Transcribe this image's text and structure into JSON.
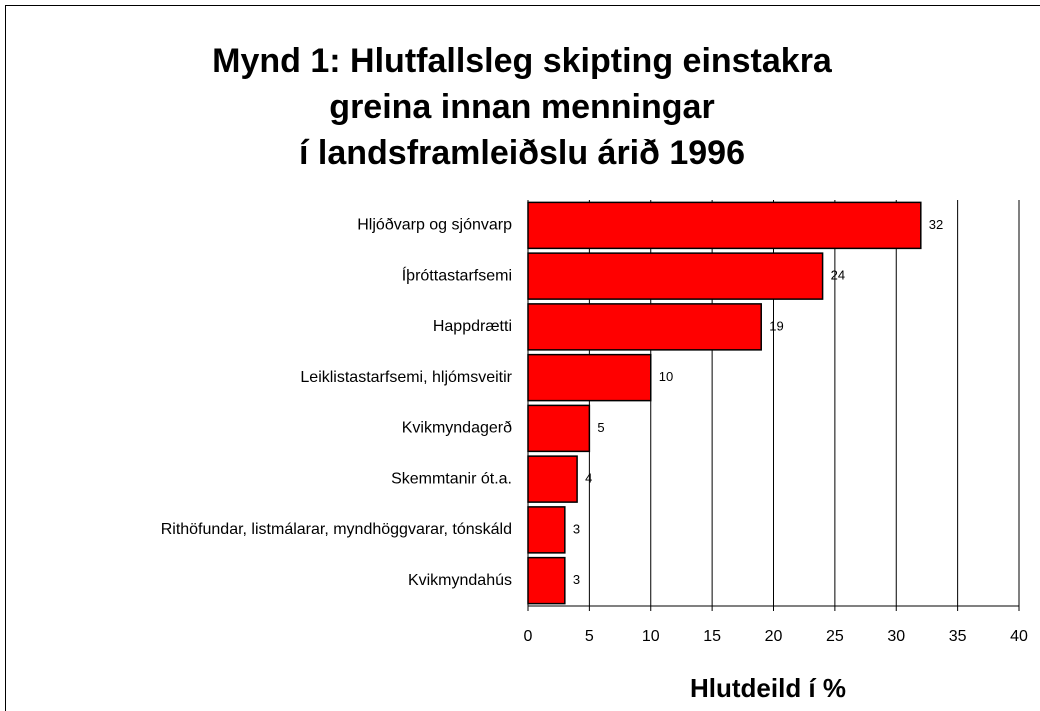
{
  "chart_data": {
    "type": "bar",
    "orientation": "horizontal",
    "title": [
      "Mynd 1: Hlutfallsleg skipting einstakra",
      "greina innan menningar",
      "í landsframleiðslu árið 1996"
    ],
    "x_label": "Hlutdeild í %",
    "categories": [
      "Hljóðvarp og sjónvarp",
      "Íþróttastarfsemi",
      "Happdrætti",
      "Leiklistastarfsemi, hljómsveitir",
      "Kvikmyndagerð",
      "Skemmtanir ót.a.",
      "Rithöfundar, listmálarar, myndhöggvarar, tónskáld",
      "Kvikmyndahús"
    ],
    "values": [
      32,
      24,
      19,
      10,
      5,
      4,
      3,
      3
    ],
    "color": "#ff0000",
    "xlim": [
      0,
      40
    ],
    "xticks": [
      0,
      5,
      10,
      15,
      20,
      25,
      30,
      35,
      40
    ],
    "grid": true
  }
}
